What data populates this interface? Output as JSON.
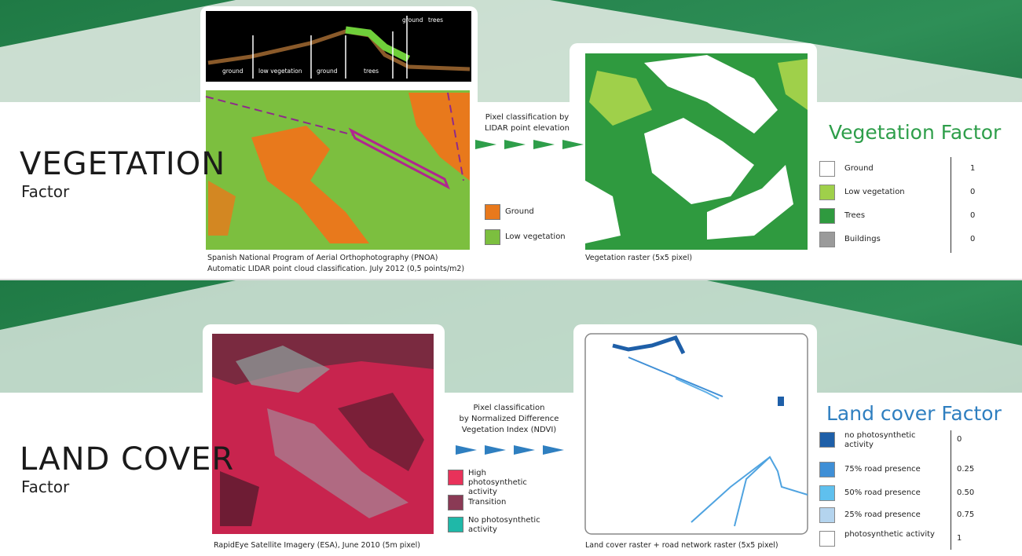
{
  "sections": [
    {
      "title": "VEGETATION",
      "subtitle": "Factor",
      "lidar_labels": [
        "ground",
        "low vegetation",
        "ground",
        "trees",
        "ground",
        "trees"
      ],
      "classification": [
        "Pixel classification by",
        "LIDAR point elevation"
      ],
      "source_legend": [
        {
          "label": "Ground",
          "color": "#e8791c"
        },
        {
          "label": "Low vegetation",
          "color": "#7cbf3f"
        }
      ],
      "source_caption": [
        "Spanish National Program of Aerial Orthophotography (PNOA)",
        "Automatic LIDAR point cloud classification. July 2012 (0,5 points/m2)"
      ],
      "raster_caption": "Vegetation raster (5x5 pixel)",
      "factor_title": "Vegetation Factor",
      "factor_rows": [
        {
          "label": "Ground",
          "value": "1",
          "color": "#ffffff"
        },
        {
          "label": "Low vegetation",
          "value": "0",
          "color": "#9fd04a"
        },
        {
          "label": "Trees",
          "value": "0",
          "color": "#2f9a3f"
        },
        {
          "label": "Buildings",
          "value": "0",
          "color": "#9a9a9a"
        }
      ]
    },
    {
      "title": "LAND COVER",
      "subtitle": "Factor",
      "classification": [
        "Pixel classification",
        "by Normalized Difference",
        "Vegetation Index (NDVI)"
      ],
      "source_legend": [
        {
          "label": "High photosynthetic activity",
          "color": "#e8325a"
        },
        {
          "label": "Transition",
          "color": "#8a3a55"
        },
        {
          "label": "No photosynthetic activity",
          "color": "#1fb8a8"
        }
      ],
      "source_caption": [
        "RapidEye Satellite Imagery (ESA), June 2010 (5m pixel)"
      ],
      "raster_caption": "Land cover raster + road network raster (5x5 pixel)",
      "factor_title": "Land cover Factor",
      "factor_rows": [
        {
          "label": "no photosynthetic activity",
          "value": "0",
          "color": "#1e5fa8"
        },
        {
          "label": "75% road presence",
          "value": "0.25",
          "color": "#3f8fd6"
        },
        {
          "label": "50% road presence",
          "value": "0.50",
          "color": "#5fc0ee"
        },
        {
          "label": "25% road presence",
          "value": "0.75",
          "color": "#b4d4ee"
        },
        {
          "label": "photosynthetic activity",
          "value": "1",
          "color": "#ffffff"
        }
      ]
    }
  ]
}
